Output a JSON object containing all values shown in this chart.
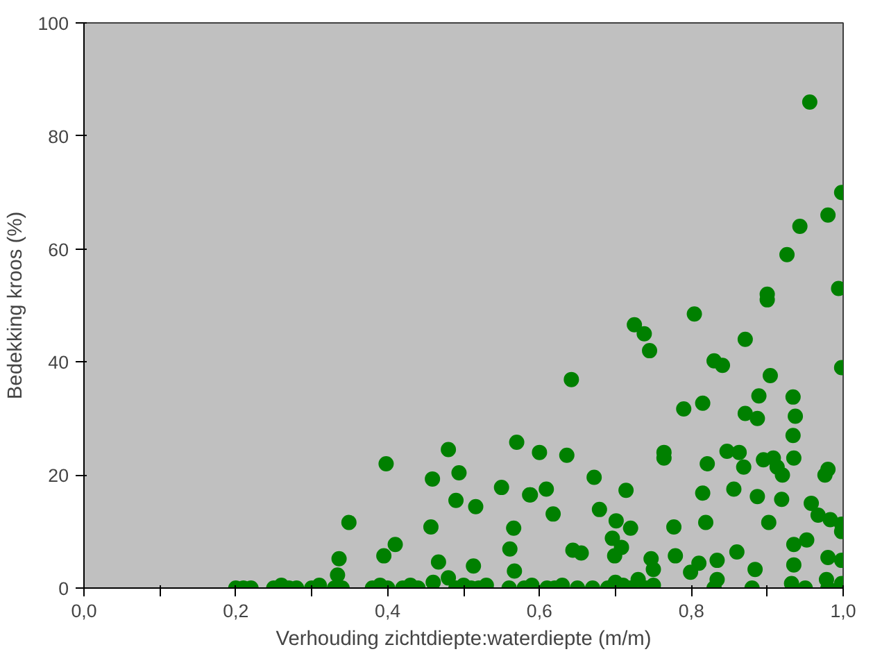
{
  "chart_data": {
    "type": "scatter",
    "xlabel": "Verhouding zichtdiepte:waterdiepte (m/m)",
    "ylabel": "Bedekking kroos (%)",
    "xlim": [
      0,
      1
    ],
    "ylim": [
      0,
      100
    ],
    "xticks": [
      {
        "value": 0,
        "label": "0,0"
      },
      {
        "value": 0.1,
        "label": null
      },
      {
        "value": 0.2,
        "label": "0,2"
      },
      {
        "value": 0.3,
        "label": null
      },
      {
        "value": 0.4,
        "label": "0,4"
      },
      {
        "value": 0.5,
        "label": null
      },
      {
        "value": 0.6,
        "label": "0,6"
      },
      {
        "value": 0.7,
        "label": null
      },
      {
        "value": 0.8,
        "label": "0,8"
      },
      {
        "value": 0.9,
        "label": null
      },
      {
        "value": 1,
        "label": "1,0"
      }
    ],
    "yticks": [
      0,
      20,
      40,
      60,
      80,
      100
    ],
    "grid": false,
    "marker": "circle",
    "series": [
      {
        "color": "#008000",
        "x": [
          0.956,
          0.998,
          0.98,
          0.943,
          0.926,
          0.994,
          0.9,
          0.9,
          0.998,
          0.725,
          0.738,
          0.745,
          0.804,
          0.871,
          0.83,
          0.841,
          0.642,
          0.904,
          0.79,
          0.815,
          0.889,
          0.934,
          0.937,
          0.871,
          0.887,
          0.934,
          0.935,
          0.764,
          0.764,
          0.821,
          0.847,
          0.863,
          0.869,
          0.895,
          0.908,
          0.913,
          0.92,
          0.98,
          0.976,
          0.6,
          0.636,
          0.588,
          0.609,
          0.672,
          0.714,
          0.618,
          0.679,
          0.701,
          0.72,
          0.777,
          0.815,
          0.819,
          0.856,
          0.887,
          0.919,
          0.902,
          0.958,
          0.967,
          0.983,
          0.998,
          0.998,
          0.696,
          0.708,
          0.699,
          0.644,
          0.655,
          0.747,
          0.75,
          0.779,
          0.81,
          0.799,
          0.834,
          0.86,
          0.884,
          0.935,
          0.952,
          0.935,
          0.98,
          0.998,
          0.834,
          0.932,
          0.978,
          0.998,
          0.398,
          0.48,
          0.459,
          0.494,
          0.49,
          0.516,
          0.55,
          0.57,
          0.349,
          0.457,
          0.41,
          0.395,
          0.336,
          0.334,
          0.467,
          0.513,
          0.566,
          0.561,
          0.587,
          0.567,
          0.48,
          0.2,
          0.21,
          0.22,
          0.25,
          0.26,
          0.27,
          0.28,
          0.3,
          0.31,
          0.33,
          0.34,
          0.38,
          0.39,
          0.4,
          0.42,
          0.43,
          0.44,
          0.46,
          0.49,
          0.5,
          0.51,
          0.52,
          0.53,
          0.56,
          0.58,
          0.59,
          0.61,
          0.62,
          0.63,
          0.65,
          0.67,
          0.69,
          0.7,
          0.71,
          0.72,
          0.73,
          0.74,
          0.75,
          0.83,
          0.88,
          0.95,
          0.98
        ],
        "values": [
          86,
          70,
          66,
          64,
          59,
          53,
          52,
          51,
          39,
          46.6,
          45,
          42,
          48.5,
          44,
          40.2,
          39.4,
          36.9,
          37.6,
          31.7,
          32.7,
          34,
          33.8,
          30.4,
          30.9,
          30,
          27,
          23,
          24,
          23,
          22,
          24.2,
          24,
          21.4,
          22.7,
          23,
          21.4,
          20,
          21,
          20,
          24,
          23.5,
          16.5,
          17.5,
          19.6,
          17.3,
          13.1,
          13.9,
          11.9,
          10.6,
          10.8,
          16.8,
          11.6,
          17.5,
          16.2,
          15.7,
          11.6,
          15,
          12.9,
          12.1,
          11.3,
          10,
          8.8,
          7.2,
          5.7,
          6.7,
          6.2,
          5.2,
          3.3,
          5.7,
          4.4,
          2.8,
          4.9,
          6.4,
          3.3,
          7.7,
          8.5,
          4.1,
          5.4,
          4.9,
          1.5,
          0.8,
          1.5,
          0.8,
          22,
          24.5,
          19.3,
          20.4,
          15.5,
          14.4,
          17.8,
          25.8,
          11.6,
          10.8,
          7.7,
          5.7,
          5.2,
          2.3,
          4.6,
          3.9,
          10.6,
          6.9,
          16.5,
          3,
          1.8,
          0,
          0,
          0,
          0,
          0.5,
          0,
          0,
          0,
          0.5,
          0,
          0,
          0,
          0.5,
          0,
          0,
          0.5,
          0,
          1,
          0,
          0.5,
          0,
          0,
          0.5,
          0,
          0,
          0.5,
          0,
          0,
          0.5,
          0,
          0,
          0,
          1,
          0.5,
          0,
          1.5,
          0,
          0.5,
          0,
          0,
          0,
          0
        ]
      }
    ]
  }
}
